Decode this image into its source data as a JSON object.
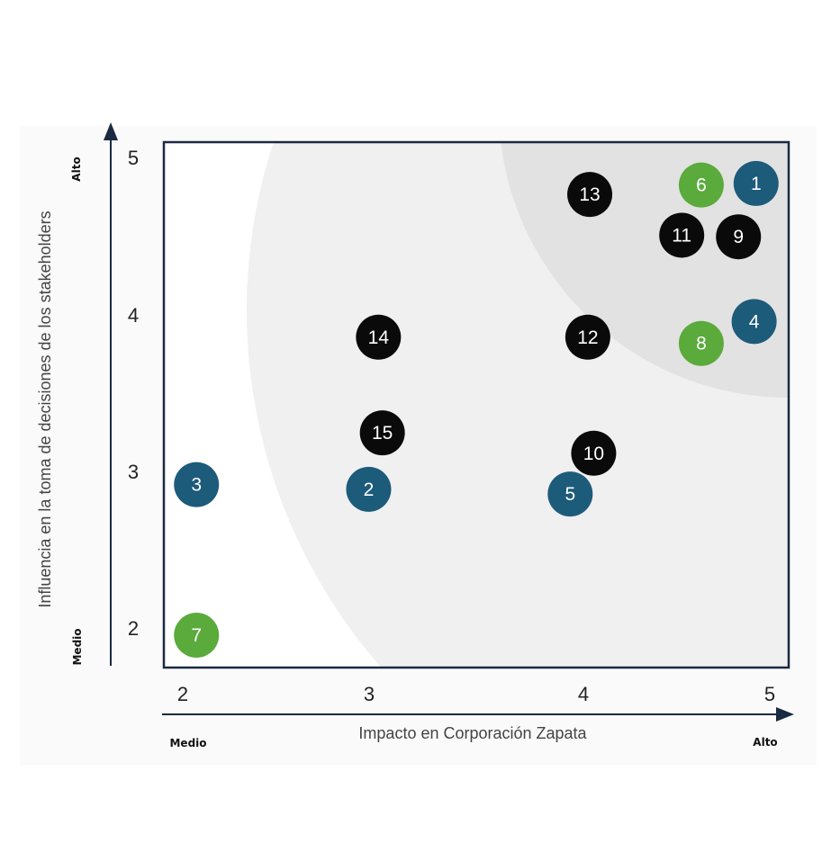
{
  "chart_data": {
    "type": "scatter",
    "title": "",
    "xlabel": "Impacto en Corporación Zapata",
    "ylabel": "Influencia en la toma de decisiones de los stakeholders",
    "xlim": [
      2,
      5
    ],
    "ylim": [
      2,
      5
    ],
    "x_ticks": [
      "2",
      "3",
      "4",
      "5"
    ],
    "y_ticks": [
      "2",
      "3",
      "4",
      "5"
    ],
    "x_axis_ends": {
      "low": "Medio",
      "high": "Alto"
    },
    "y_axis_ends": {
      "low": "Medio",
      "high": "Alto"
    },
    "grid": false,
    "legend": "none",
    "colors": {
      "blue": "#1d5b7a",
      "green": "#5aaa3c",
      "black": "#0a0a0a",
      "frame": "#1a2a40",
      "zone_outer": "#f0f0f0",
      "zone_inner": "#e2e2e2"
    },
    "points": [
      {
        "label": "1",
        "x": 4.93,
        "y": 4.88,
        "color": "blue"
      },
      {
        "label": "2",
        "x": 2.95,
        "y": 2.93,
        "color": "blue"
      },
      {
        "label": "3",
        "x": 2.07,
        "y": 2.96,
        "color": "blue"
      },
      {
        "label": "4",
        "x": 4.92,
        "y": 4.0,
        "color": "blue"
      },
      {
        "label": "5",
        "x": 3.98,
        "y": 2.9,
        "color": "blue"
      },
      {
        "label": "6",
        "x": 4.65,
        "y": 4.87,
        "color": "green"
      },
      {
        "label": "7",
        "x": 2.07,
        "y": 2.0,
        "color": "green"
      },
      {
        "label": "8",
        "x": 4.65,
        "y": 3.86,
        "color": "green"
      },
      {
        "label": "9",
        "x": 4.84,
        "y": 4.54,
        "color": "black"
      },
      {
        "label": "10",
        "x": 4.1,
        "y": 3.16,
        "color": "black"
      },
      {
        "label": "11",
        "x": 4.55,
        "y": 4.55,
        "color": "black"
      },
      {
        "label": "12",
        "x": 4.07,
        "y": 3.9,
        "color": "black"
      },
      {
        "label": "13",
        "x": 4.08,
        "y": 4.81,
        "color": "black"
      },
      {
        "label": "14",
        "x": 3.0,
        "y": 3.9,
        "color": "black"
      },
      {
        "label": "15",
        "x": 3.02,
        "y": 3.29,
        "color": "black"
      }
    ]
  }
}
